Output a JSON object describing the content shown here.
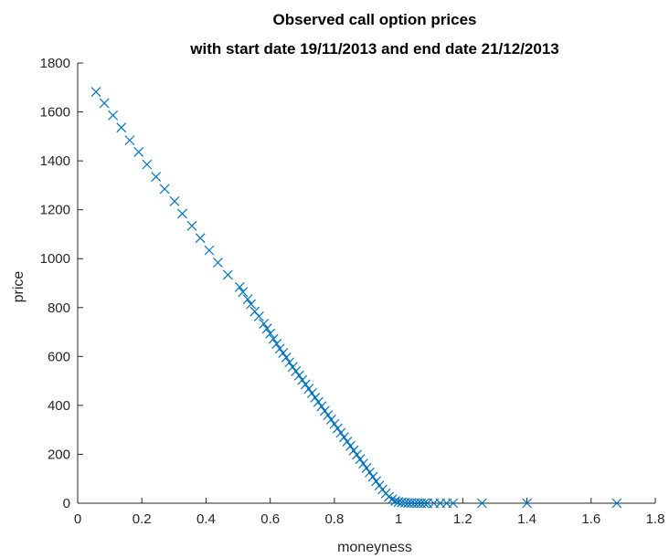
{
  "chart_data": {
    "type": "scatter",
    "title": "Observed call option prices",
    "subtitle": "with start date 19/11/2013 and end date 21/12/2013",
    "xlabel": "moneyness",
    "ylabel": "price",
    "xlim": [
      0,
      1.8
    ],
    "ylim": [
      0,
      1800
    ],
    "x_ticks": [
      "0",
      "0.2",
      "0.4",
      "0.6",
      "0.8",
      "1",
      "1.2",
      "1.4",
      "1.6",
      "1.8"
    ],
    "y_ticks": [
      "0",
      "200",
      "400",
      "600",
      "800",
      "1000",
      "1200",
      "1400",
      "1600",
      "1800"
    ],
    "grid": false,
    "marker": "x",
    "series_color": "#0072BD",
    "points": [
      [
        0.057,
        1682
      ],
      [
        0.083,
        1636
      ],
      [
        0.11,
        1586
      ],
      [
        0.136,
        1536
      ],
      [
        0.162,
        1484
      ],
      [
        0.19,
        1436
      ],
      [
        0.216,
        1385
      ],
      [
        0.244,
        1335
      ],
      [
        0.271,
        1285
      ],
      [
        0.302,
        1235
      ],
      [
        0.326,
        1184
      ],
      [
        0.356,
        1134
      ],
      [
        0.382,
        1084
      ],
      [
        0.41,
        1034
      ],
      [
        0.437,
        984
      ],
      [
        0.468,
        934
      ],
      [
        0.505,
        884
      ],
      [
        0.515,
        864
      ],
      [
        0.53,
        834
      ],
      [
        0.54,
        814
      ],
      [
        0.552,
        784
      ],
      [
        0.565,
        764
      ],
      [
        0.58,
        734
      ],
      [
        0.59,
        714
      ],
      [
        0.6,
        694
      ],
      [
        0.61,
        672
      ],
      [
        0.62,
        652
      ],
      [
        0.63,
        632
      ],
      [
        0.64,
        614
      ],
      [
        0.65,
        596
      ],
      [
        0.66,
        576
      ],
      [
        0.67,
        557
      ],
      [
        0.68,
        540
      ],
      [
        0.69,
        522
      ],
      [
        0.7,
        504
      ],
      [
        0.71,
        486
      ],
      [
        0.72,
        468
      ],
      [
        0.73,
        450
      ],
      [
        0.74,
        432
      ],
      [
        0.75,
        414
      ],
      [
        0.76,
        396
      ],
      [
        0.77,
        378
      ],
      [
        0.78,
        360
      ],
      [
        0.79,
        342
      ],
      [
        0.8,
        324
      ],
      [
        0.81,
        306
      ],
      [
        0.82,
        288
      ],
      [
        0.83,
        270
      ],
      [
        0.84,
        252
      ],
      [
        0.85,
        234
      ],
      [
        0.86,
        216
      ],
      [
        0.87,
        198
      ],
      [
        0.88,
        180
      ],
      [
        0.89,
        162
      ],
      [
        0.9,
        144
      ],
      [
        0.91,
        126
      ],
      [
        0.92,
        108
      ],
      [
        0.93,
        90
      ],
      [
        0.94,
        72
      ],
      [
        0.95,
        56
      ],
      [
        0.96,
        40
      ],
      [
        0.97,
        26
      ],
      [
        0.98,
        16
      ],
      [
        0.99,
        9
      ],
      [
        1.0,
        5
      ],
      [
        1.01,
        3
      ],
      [
        1.02,
        2
      ],
      [
        1.03,
        1
      ],
      [
        1.04,
        1
      ],
      [
        1.05,
        0
      ],
      [
        1.06,
        0
      ],
      [
        1.07,
        0
      ],
      [
        1.08,
        0
      ],
      [
        1.09,
        0
      ],
      [
        1.11,
        0
      ],
      [
        1.13,
        0
      ],
      [
        1.15,
        0
      ],
      [
        1.17,
        0
      ],
      [
        1.26,
        0
      ],
      [
        1.4,
        0
      ],
      [
        1.68,
        0
      ]
    ]
  }
}
